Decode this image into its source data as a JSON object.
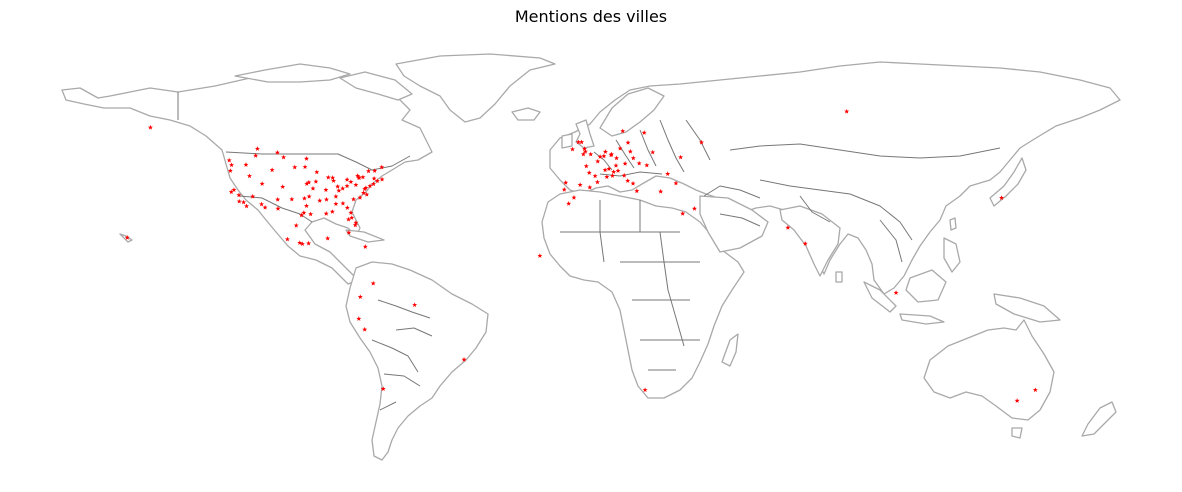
{
  "map": {
    "title": "Mentions des villes",
    "projection": "equirectangular",
    "land_color": "#ffffff",
    "coastline_color": "#a9a9a9",
    "border_color": "#777777",
    "marker_color": "#ff0000",
    "marker_symbol": "star"
  },
  "chart_data": {
    "type": "scatter",
    "title": "Mentions des villes",
    "xlabel": "",
    "ylabel": "",
    "grid": false,
    "xlim": [
      -180,
      180
    ],
    "ylim": [
      -60,
      90
    ],
    "points": [
      [
        -149.9,
        61.2
      ],
      [
        -79.4,
        43.7
      ],
      [
        -96.8,
        49.9
      ],
      [
        -113.5,
        53.5
      ],
      [
        -123.1,
        49.3
      ],
      [
        -114.1,
        51.0
      ],
      [
        -106.7,
        52.1
      ],
      [
        -97.3,
        46.9
      ],
      [
        -104.6,
        50.4
      ],
      [
        -122.4,
        37.8
      ],
      [
        -122.7,
        45.5
      ],
      [
        -122.3,
        47.6
      ],
      [
        -118.2,
        34.1
      ],
      [
        -117.2,
        32.7
      ],
      [
        -112.1,
        33.4
      ],
      [
        -115.1,
        36.2
      ],
      [
        -111.9,
        40.8
      ],
      [
        -104.9,
        39.7
      ],
      [
        -106.6,
        35.1
      ],
      [
        -110.9,
        32.2
      ],
      [
        -106.5,
        31.8
      ],
      [
        -119.8,
        36.7
      ],
      [
        -121.5,
        38.6
      ],
      [
        -116.2,
        43.6
      ],
      [
        -97.7,
        30.3
      ],
      [
        -95.4,
        29.8
      ],
      [
        -96.8,
        32.8
      ],
      [
        -98.5,
        29.4
      ],
      [
        -97.5,
        35.5
      ],
      [
        -95.9,
        36.2
      ],
      [
        -94.6,
        39.1
      ],
      [
        -90.2,
        38.6
      ],
      [
        -93.3,
        45.0
      ],
      [
        -87.6,
        41.9
      ],
      [
        -87.9,
        43.0
      ],
      [
        -86.2,
        39.8
      ],
      [
        -83.0,
        40.0
      ],
      [
        -84.5,
        39.1
      ],
      [
        -81.7,
        41.5
      ],
      [
        -83.0,
        42.3
      ],
      [
        -80.0,
        40.4
      ],
      [
        -75.2,
        40.0
      ],
      [
        -74.0,
        40.7
      ],
      [
        -71.1,
        42.4
      ],
      [
        -77.0,
        38.9
      ],
      [
        -76.6,
        39.3
      ],
      [
        -78.6,
        35.8
      ],
      [
        -80.8,
        35.2
      ],
      [
        -84.4,
        33.7
      ],
      [
        -86.8,
        33.5
      ],
      [
        -90.1,
        30.0
      ],
      [
        -90.0,
        35.1
      ],
      [
        -86.8,
        36.2
      ],
      [
        -85.8,
        38.3
      ],
      [
        -81.4,
        28.5
      ],
      [
        -80.2,
        25.8
      ],
      [
        -82.5,
        27.9
      ],
      [
        -81.7,
        30.3
      ],
      [
        -93.6,
        41.6
      ],
      [
        -96.0,
        41.3
      ],
      [
        -92.3,
        34.7
      ],
      [
        -88.0,
        30.7
      ],
      [
        -76.3,
        36.9
      ],
      [
        -77.4,
        37.5
      ],
      [
        -73.8,
        42.7
      ],
      [
        -78.9,
        42.9
      ],
      [
        -77.6,
        43.2
      ],
      [
        -72.7,
        41.8
      ],
      [
        -79.0,
        43.1
      ],
      [
        -75.7,
        45.4
      ],
      [
        -73.6,
        45.5
      ],
      [
        -71.2,
        46.8
      ],
      [
        -100.3,
        25.7
      ],
      [
        -99.1,
        19.4
      ],
      [
        -103.3,
        20.7
      ],
      [
        -98.2,
        19.0
      ],
      [
        -96.1,
        19.2
      ],
      [
        -89.6,
        21.0
      ],
      [
        -82.4,
        23.1
      ],
      [
        -76.8,
        18.0
      ],
      [
        -80.0,
        26.7
      ],
      [
        -82.9,
        32.1
      ],
      [
        -89.4,
        43.1
      ],
      [
        -101.8,
        35.2
      ],
      [
        -119.7,
        34.4
      ],
      [
        -117.4,
        47.7
      ],
      [
        -108.5,
        45.8
      ],
      [
        -96.7,
        40.8
      ],
      [
        -100.8,
        46.8
      ],
      [
        -74.1,
        4.7
      ],
      [
        -77.0,
        -12.0
      ],
      [
        -78.5,
        -0.2
      ],
      [
        -70.7,
        -33.5
      ],
      [
        -43.2,
        -22.9
      ],
      [
        -60.0,
        -3.1
      ],
      [
        -79.0,
        -8.1
      ],
      [
        -157.8,
        21.3
      ],
      [
        -0.1,
        51.5
      ],
      [
        2.3,
        48.9
      ],
      [
        -3.7,
        40.4
      ],
      [
        2.2,
        41.4
      ],
      [
        -9.1,
        38.7
      ],
      [
        4.9,
        52.4
      ],
      [
        4.4,
        50.8
      ],
      [
        13.4,
        52.5
      ],
      [
        8.7,
        50.1
      ],
      [
        11.6,
        48.1
      ],
      [
        16.4,
        48.2
      ],
      [
        14.4,
        50.1
      ],
      [
        12.5,
        41.9
      ],
      [
        9.2,
        45.5
      ],
      [
        7.7,
        45.1
      ],
      [
        11.3,
        43.8
      ],
      [
        14.3,
        40.9
      ],
      [
        6.1,
        46.2
      ],
      [
        8.5,
        47.4
      ],
      [
        4.8,
        45.8
      ],
      [
        5.4,
        43.3
      ],
      [
        -1.6,
        47.2
      ],
      [
        -0.6,
        44.8
      ],
      [
        1.4,
        43.6
      ],
      [
        7.3,
        43.7
      ],
      [
        -6.3,
        53.3
      ],
      [
        -3.2,
        55.9
      ],
      [
        -2.2,
        53.5
      ],
      [
        -4.3,
        55.9
      ],
      [
        -1.9,
        52.5
      ],
      [
        12.6,
        55.7
      ],
      [
        18.1,
        59.3
      ],
      [
        10.8,
        59.9
      ],
      [
        21.0,
        52.2
      ],
      [
        19.0,
        47.5
      ],
      [
        23.7,
        38.0
      ],
      [
        28.9,
        41.0
      ],
      [
        26.1,
        44.4
      ],
      [
        37.6,
        55.8
      ],
      [
        30.5,
        50.4
      ],
      [
        35.2,
        31.8
      ],
      [
        31.2,
        30.0
      ],
      [
        -7.6,
        33.6
      ],
      [
        -5.8,
        35.8
      ],
      [
        -0.4,
        39.5
      ],
      [
        -8.6,
        41.2
      ],
      [
        7.0,
        51.5
      ],
      [
        9.9,
        53.6
      ],
      [
        6.8,
        51.2
      ],
      [
        3.1,
        50.6
      ],
      [
        -2.6,
        51.5
      ],
      [
        15.6,
        38.2
      ],
      [
        -17.4,
        14.7
      ],
      [
        18.4,
        -33.9
      ],
      [
        87.0,
        67.0
      ],
      [
        67.0,
        24.9
      ],
      [
        72.9,
        19.1
      ],
      [
        103.8,
        1.3
      ],
      [
        139.7,
        35.7
      ],
      [
        151.2,
        -33.9
      ],
      [
        145.0,
        -37.8
      ]
    ]
  }
}
